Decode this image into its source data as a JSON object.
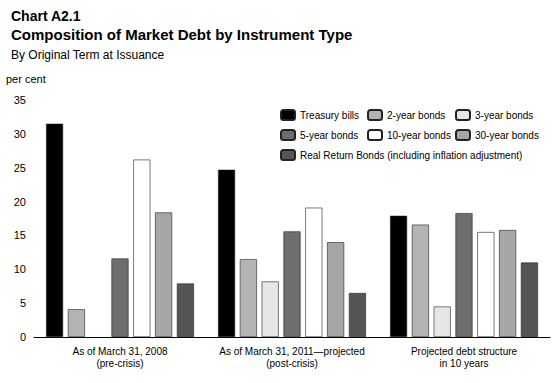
{
  "chart_data": {
    "type": "bar",
    "title": "Chart A2.1",
    "subtitle": "Composition of Market Debt by Instrument Type",
    "subtitle2": "By Original Term at Issuance",
    "y_label": "per cent",
    "categories": [
      "As of March 31, 2008\n(pre-crisis)",
      "As of March 31, 2011—projected\n(post-crisis)",
      "Projected debt structure\nin 10 years"
    ],
    "series": [
      {
        "name": "Treasury bills",
        "color": "#000000",
        "values": [
          31.5,
          24.7,
          17.9
        ]
      },
      {
        "name": "2-year bonds",
        "color": "#b4b4b4",
        "values": [
          4.1,
          11.5,
          16.6
        ]
      },
      {
        "name": "3-year bonds",
        "color": "#e6e6e6",
        "values": [
          null,
          8.2,
          4.5
        ]
      },
      {
        "name": "5-year bonds",
        "color": "#6e6e6e",
        "values": [
          11.6,
          15.6,
          18.3
        ]
      },
      {
        "name": "10-year bonds",
        "color": "#ffffff",
        "values": [
          26.2,
          19.1,
          15.5
        ]
      },
      {
        "name": "30-year bonds",
        "color": "#a6a6a6",
        "values": [
          18.4,
          14.0,
          15.8
        ]
      },
      {
        "name": "Real Return Bonds (including inflation adjustment)",
        "color": "#555555",
        "values": [
          7.9,
          6.5,
          11.0
        ]
      }
    ],
    "ylim": [
      0,
      35
    ],
    "yticks": [
      0,
      5,
      10,
      15,
      20,
      25,
      30,
      35
    ],
    "grid": false,
    "legend": "upper right",
    "data_labels": false
  }
}
